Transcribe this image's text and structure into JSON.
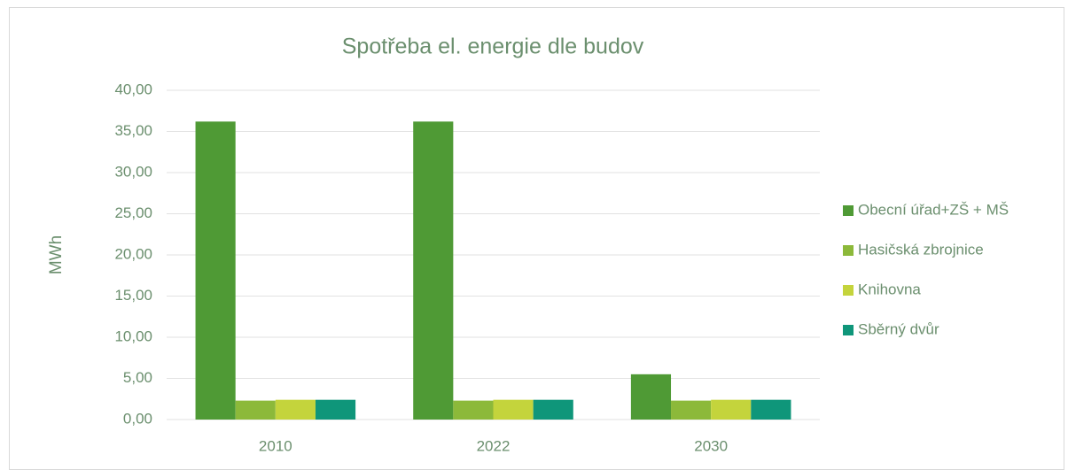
{
  "chart_data": {
    "type": "bar",
    "title": "Spotřeba el. energie dle budov",
    "y_label": "MWh",
    "categories": [
      "2010",
      "2022",
      "2030"
    ],
    "series": [
      {
        "name": "Obecní úřad+ZŠ + MŠ",
        "color": "#4f9a35",
        "values": [
          36.2,
          36.2,
          5.5
        ]
      },
      {
        "name": "Hasičská zbrojnice",
        "color": "#8cb93a",
        "values": [
          2.3,
          2.3,
          2.3
        ]
      },
      {
        "name": "Knihovna",
        "color": "#c4d43c",
        "values": [
          2.4,
          2.4,
          2.4
        ]
      },
      {
        "name": "Sběrný dvůr",
        "color": "#0f967a",
        "values": [
          2.4,
          2.4,
          2.4
        ]
      }
    ],
    "ylim": [
      0,
      40
    ],
    "yticks": [
      {
        "value": 0,
        "label": "0,00"
      },
      {
        "value": 5,
        "label": "5,00"
      },
      {
        "value": 10,
        "label": "10,00"
      },
      {
        "value": 15,
        "label": "15,00"
      },
      {
        "value": 20,
        "label": "20,00"
      },
      {
        "value": 25,
        "label": "25,00"
      },
      {
        "value": 30,
        "label": "30,00"
      },
      {
        "value": 35,
        "label": "35,00"
      },
      {
        "value": 40,
        "label": "40,00"
      }
    ],
    "grid": true,
    "legend": "right"
  }
}
